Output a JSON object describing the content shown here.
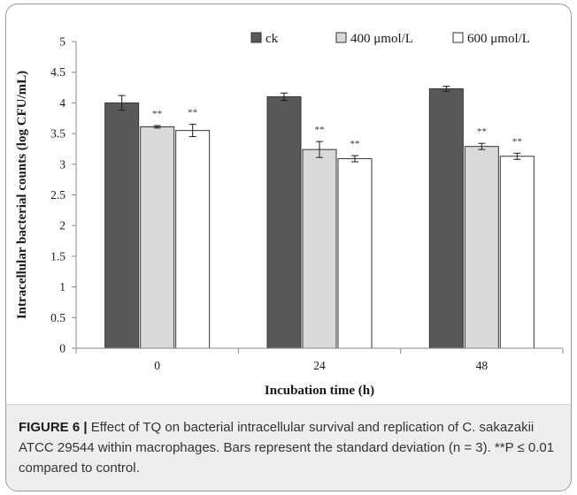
{
  "chart_data": {
    "type": "bar",
    "categories": [
      "0",
      "24",
      "48"
    ],
    "series": [
      {
        "name": "ck",
        "values": [
          4.0,
          4.1,
          4.23
        ],
        "errors": [
          0.12,
          0.06,
          0.04
        ],
        "color": "#595959",
        "significance": [
          "",
          "",
          ""
        ]
      },
      {
        "name": "400 μmol/L",
        "values": [
          3.61,
          3.24,
          3.29
        ],
        "errors": [
          0.02,
          0.13,
          0.05
        ],
        "color": "#d9d9d9",
        "significance": [
          "**",
          "**",
          "**"
        ]
      },
      {
        "name": "600 μmol/L",
        "values": [
          3.55,
          3.09,
          3.13
        ],
        "errors": [
          0.1,
          0.05,
          0.05
        ],
        "color": "#ffffff",
        "significance": [
          "**",
          "**",
          "**"
        ]
      }
    ],
    "xlabel": "Incubation time (h)",
    "ylabel": "Intracellular bacterial counts (log CFU/mL)",
    "ylim": [
      0,
      5
    ],
    "yticks": [
      "0",
      "0.5",
      "1",
      "1.5",
      "2",
      "2.5",
      "3",
      "3.5",
      "4",
      "4.5",
      "5"
    ],
    "legend_position": "top-right",
    "grid": false
  },
  "caption": {
    "lead": "FIGURE 6 |",
    "body": "Effect of TQ on bacterial intracellular survival and replication of C. sakazakii ATCC 29544 within macrophages. Bars represent the standard deviation (n = 3). **P ≤ 0.01 compared to control."
  }
}
